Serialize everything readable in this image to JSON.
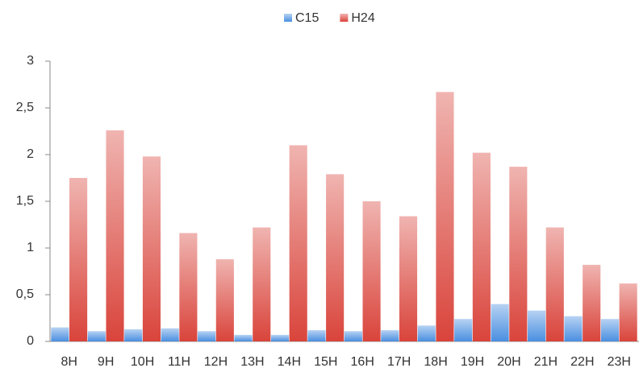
{
  "chart_data": {
    "type": "bar",
    "categories": [
      "8H",
      "9H",
      "10H",
      "11H",
      "12H",
      "13H",
      "14H",
      "15H",
      "16H",
      "17H",
      "18H",
      "19H",
      "20H",
      "21H",
      "22H",
      "23H"
    ],
    "series": [
      {
        "name": "C15",
        "color": "#4a8fe0",
        "values": [
          0.15,
          0.11,
          0.13,
          0.14,
          0.11,
          0.07,
          0.07,
          0.12,
          0.11,
          0.12,
          0.17,
          0.24,
          0.4,
          0.33,
          0.27,
          0.24
        ]
      },
      {
        "name": "H24",
        "color": "#d9443b",
        "values": [
          1.75,
          2.26,
          1.98,
          1.16,
          0.88,
          1.22,
          2.1,
          1.79,
          1.5,
          1.34,
          2.67,
          2.02,
          1.87,
          1.22,
          0.82,
          0.62
        ]
      }
    ],
    "ylim": [
      0,
      3
    ],
    "yticks": [
      0,
      {
        "value": 0.5,
        "label": "0,5"
      },
      1,
      {
        "value": 1.5,
        "label": "1,5"
      },
      2,
      {
        "value": 2.5,
        "label": "2,5"
      },
      3
    ],
    "grid": false,
    "legend": "top"
  }
}
